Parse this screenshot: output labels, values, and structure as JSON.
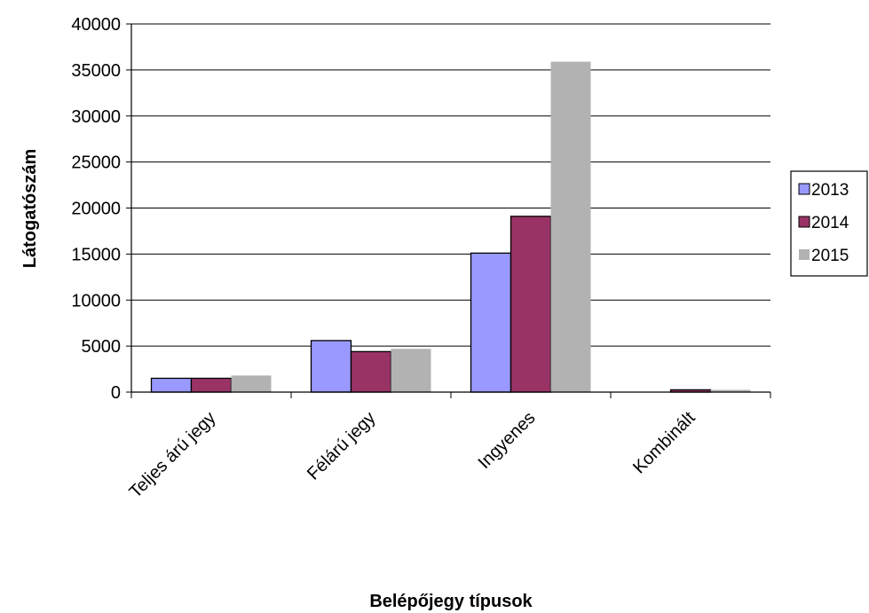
{
  "chart_data": {
    "type": "bar",
    "title": "",
    "xlabel": "Belépőjegy típusok",
    "ylabel": "Látogatószám",
    "ylim": [
      0,
      40000
    ],
    "yticks": [
      0,
      5000,
      10000,
      15000,
      20000,
      25000,
      30000,
      35000,
      40000
    ],
    "categories": [
      "Teljes árú jegy",
      "Félárú jegy",
      "Ingyenes",
      "Kombinált"
    ],
    "series": [
      {
        "name": "2013",
        "color": "#9999ff",
        "values": [
          1500,
          5600,
          15100,
          0
        ]
      },
      {
        "name": "2014",
        "color": "#993366",
        "values": [
          1500,
          4400,
          19100,
          250
        ]
      },
      {
        "name": "2015",
        "color": "#b2b2b2",
        "values": [
          1800,
          4700,
          35900,
          250
        ]
      }
    ],
    "grid": true,
    "legend": "right"
  }
}
